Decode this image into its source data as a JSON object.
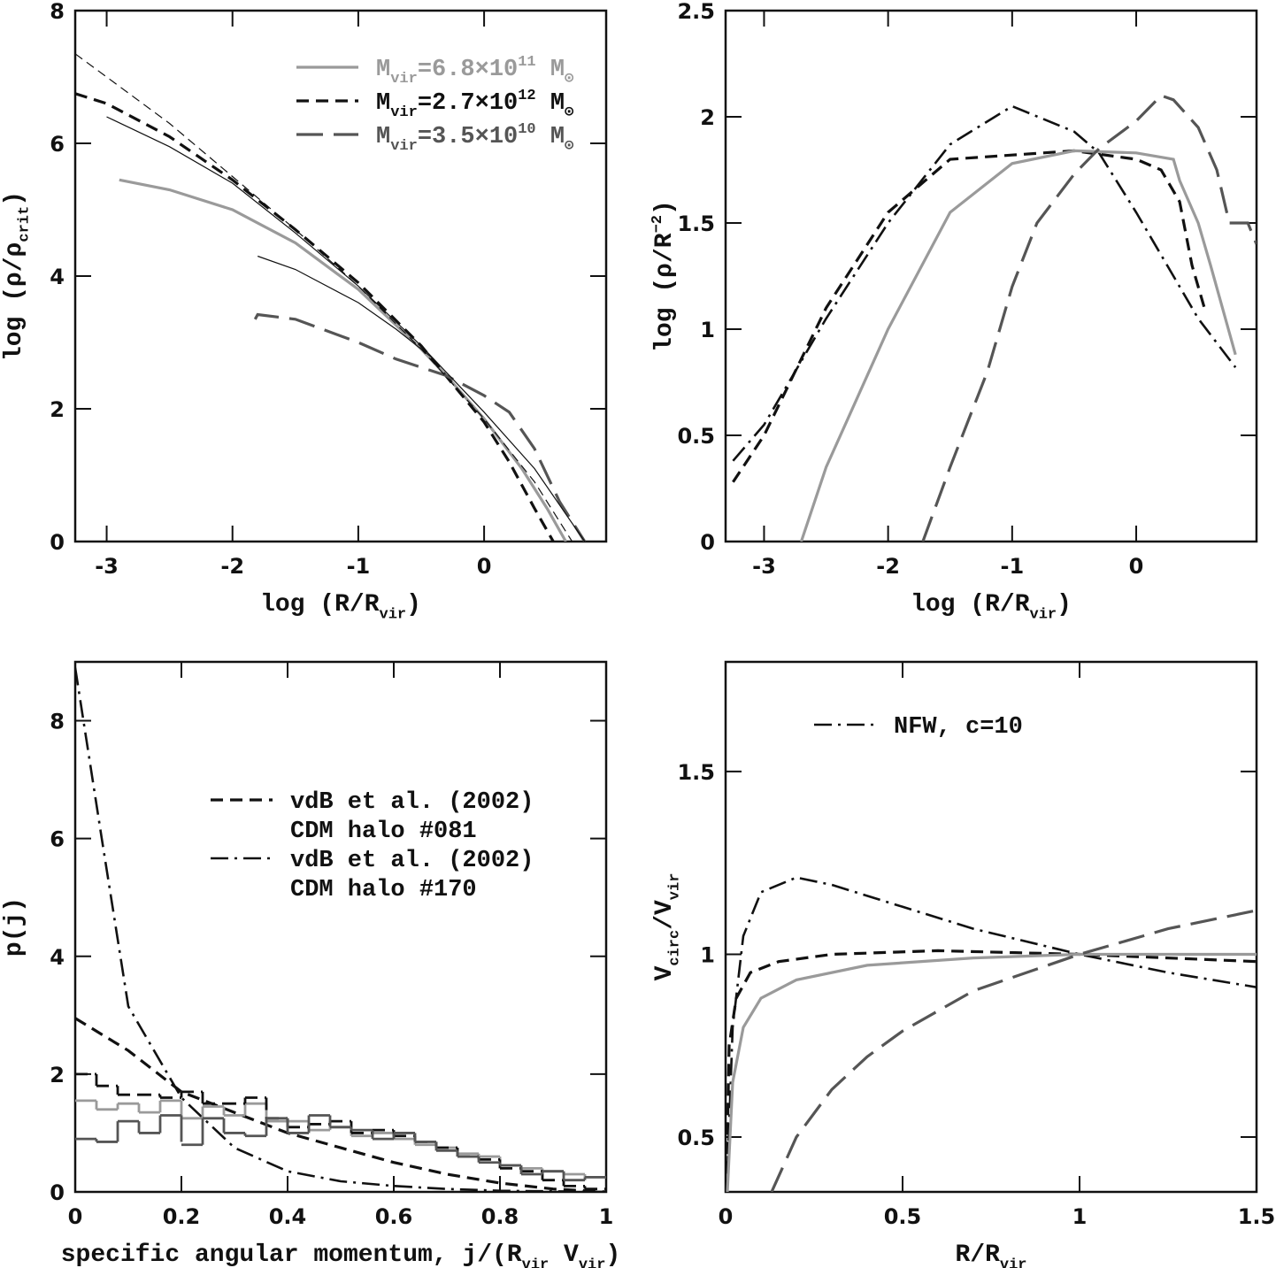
{
  "chart_data": [
    {
      "type": "line",
      "xlabel": [
        {
          "text": "log (R/R"
        },
        {
          "text": "vir",
          "shift": "sub"
        },
        {
          "text": ")"
        }
      ],
      "ylabel": [
        {
          "text": "log (ρ/ρ"
        },
        {
          "text": "crit",
          "shift": "sub"
        },
        {
          "text": ")"
        }
      ],
      "xlim": [
        -3.25,
        0.97
      ],
      "ylim": [
        0,
        8
      ],
      "xticks": [
        -3,
        -2,
        -1,
        0
      ],
      "yticks": [
        0,
        2,
        4,
        6,
        8
      ],
      "legend": "upper right",
      "series": [
        {
          "name": [
            [
              {
                "text": "M"
              },
              {
                "text": "vir",
                "shift": "sub"
              },
              {
                "text": "=6.8×10"
              },
              {
                "text": "11",
                "shift": "sup"
              },
              {
                "text": " M"
              },
              {
                "text": "⊙",
                "shift": "sub"
              }
            ]
          ],
          "color": "#9a9a9a",
          "linestyle": "solid",
          "x": [
            -2.9,
            -2.5,
            -2,
            -1.5,
            -1,
            -0.5,
            -0.3,
            0,
            0.3,
            0.5,
            0.65
          ],
          "values": [
            5.45,
            5.3,
            5.0,
            4.5,
            3.8,
            2.9,
            2.5,
            1.85,
            1.1,
            0.5,
            0
          ]
        },
        {
          "name": [
            [
              {
                "text": "M"
              },
              {
                "text": "vir",
                "shift": "sub"
              },
              {
                "text": "=2.7×10"
              },
              {
                "text": "12",
                "shift": "sup"
              },
              {
                "text": " M"
              },
              {
                "text": "⊙",
                "shift": "sub"
              }
            ]
          ],
          "color": "#111111",
          "linestyle": "dashed",
          "x": [
            -3.25,
            -3,
            -2.5,
            -2,
            -1.5,
            -1,
            -0.5,
            0,
            0.2,
            0.4,
            0.55
          ],
          "values": [
            6.75,
            6.6,
            6.1,
            5.45,
            4.7,
            3.9,
            2.95,
            1.8,
            1.2,
            0.5,
            0
          ]
        },
        {
          "name": [
            [
              {
                "text": "M"
              },
              {
                "text": "vir",
                "shift": "sub"
              },
              {
                "text": "=3.5×10"
              },
              {
                "text": "10",
                "shift": "sup"
              },
              {
                "text": " M"
              },
              {
                "text": "⊙",
                "shift": "sub"
              }
            ]
          ],
          "color": "#555555",
          "linestyle": "longdash",
          "x": [
            -1.82,
            -1.8,
            -1.5,
            -1,
            -0.7,
            -0.3,
            0,
            0.2,
            0.4,
            0.6,
            0.8
          ],
          "values": [
            3.35,
            3.42,
            3.35,
            3.0,
            2.75,
            2.5,
            2.2,
            1.95,
            1.4,
            0.6,
            0
          ]
        },
        {
          "color": "#111111",
          "linestyle": "thin-dashed",
          "x": [
            -3.25,
            -3,
            -2.5,
            -2,
            -1.5,
            -1,
            -0.5,
            0,
            0.4,
            0.7
          ],
          "values": [
            7.35,
            7.0,
            6.3,
            5.5,
            4.7,
            3.85,
            2.9,
            1.85,
            0.9,
            0
          ]
        },
        {
          "color": "#111111",
          "linestyle": "thin-solid",
          "x": [
            -3,
            -2.5,
            -2,
            -1.5,
            -1,
            -0.5,
            0,
            0.4,
            0.8
          ],
          "values": [
            6.4,
            5.95,
            5.4,
            4.65,
            3.85,
            2.95,
            1.95,
            1.1,
            0
          ]
        },
        {
          "color": "#111111",
          "linestyle": "thin-solid",
          "x": [
            -1.8,
            -1.5,
            -1,
            -0.7,
            -0.4
          ],
          "values": [
            4.3,
            4.1,
            3.6,
            3.2,
            2.75
          ]
        }
      ]
    },
    {
      "type": "line",
      "xlabel": [
        {
          "text": "log (R/R"
        },
        {
          "text": "vir",
          "shift": "sub"
        },
        {
          "text": ")"
        }
      ],
      "ylabel": [
        {
          "text": "log (ρ/R"
        },
        {
          "text": "−2",
          "shift": "sup"
        },
        {
          "text": ")"
        }
      ],
      "xlim": [
        -3.31,
        0.97
      ],
      "ylim": [
        0,
        2.5
      ],
      "xticks": [
        -3,
        -2,
        -1,
        0
      ],
      "yticks": [
        0,
        0.5,
        1,
        1.5,
        2,
        2.5
      ],
      "series": [
        {
          "color": "#111111",
          "linestyle": "dashdot",
          "x": [
            -3.25,
            -3,
            -2.5,
            -2,
            -1.5,
            -1,
            -0.5,
            -0.3,
            0,
            0.3,
            0.5,
            0.8
          ],
          "values": [
            0.38,
            0.55,
            1.05,
            1.5,
            1.87,
            2.05,
            1.93,
            1.83,
            1.55,
            1.25,
            1.05,
            0.82
          ]
        },
        {
          "color": "#111111",
          "linestyle": "dashed",
          "x": [
            -3.25,
            -3,
            -2.5,
            -2,
            -1.5,
            -1,
            -0.5,
            0,
            0.2,
            0.35,
            0.45,
            0.55
          ],
          "values": [
            0.28,
            0.5,
            1.1,
            1.55,
            1.8,
            1.82,
            1.84,
            1.8,
            1.75,
            1.6,
            1.3,
            1.1
          ]
        },
        {
          "color": "#9a9a9a",
          "linestyle": "solid",
          "x": [
            -2.7,
            -2.5,
            -2,
            -1.5,
            -1,
            -0.5,
            0,
            0.3,
            0.35,
            0.5,
            0.6,
            0.8
          ],
          "values": [
            0,
            0.35,
            1.0,
            1.55,
            1.78,
            1.84,
            1.83,
            1.8,
            1.7,
            1.5,
            1.3,
            0.88
          ]
        },
        {
          "color": "#555555",
          "linestyle": "longdash",
          "x": [
            -1.72,
            -1.5,
            -1.2,
            -1,
            -0.8,
            -0.5,
            -0.3,
            0,
            0.2,
            0.3,
            0.5,
            0.65,
            0.75,
            0.9,
            0.97
          ],
          "values": [
            0,
            0.35,
            0.8,
            1.2,
            1.5,
            1.73,
            1.85,
            1.98,
            2.1,
            2.08,
            1.95,
            1.75,
            1.5,
            1.5,
            1.4
          ]
        }
      ]
    },
    {
      "type": "line",
      "xlabel": [
        {
          "text": "specific angular momentum, j/(R"
        },
        {
          "text": "vir",
          "shift": "sub"
        },
        {
          "text": " V"
        },
        {
          "text": "vir",
          "shift": "sub"
        },
        {
          "text": ")"
        }
      ],
      "ylabel": [
        {
          "text": "p(j)"
        }
      ],
      "xlim": [
        0,
        1
      ],
      "ylim": [
        0,
        9
      ],
      "xticks": [
        0,
        0.2,
        0.4,
        0.6,
        0.8,
        1
      ],
      "yticks": [
        0,
        2,
        4,
        6,
        8
      ],
      "legend": "center right",
      "series": [
        {
          "name": [
            [
              {
                "text": "vdB et al. (2002)"
              }
            ],
            [
              {
                "text": "CDM halo #081"
              }
            ]
          ],
          "color": "#111111",
          "linestyle": "dashed",
          "x": [
            0,
            0.1,
            0.2,
            0.3,
            0.4,
            0.5,
            0.6,
            0.7,
            0.8,
            0.9,
            1
          ],
          "values": [
            2.95,
            2.4,
            1.7,
            1.35,
            1.0,
            0.75,
            0.5,
            0.3,
            0.15,
            0.05,
            0
          ]
        },
        {
          "name": [
            [
              {
                "text": "vdB et al. (2002)"
              }
            ],
            [
              {
                "text": "CDM halo #170"
              }
            ]
          ],
          "color": "#111111",
          "linestyle": "dashdot",
          "x": [
            0,
            0.05,
            0.1,
            0.2,
            0.3,
            0.4,
            0.5,
            0.6,
            0.7,
            0.8,
            1
          ],
          "values": [
            8.9,
            6.0,
            3.15,
            1.6,
            0.75,
            0.35,
            0.18,
            0.1,
            0.05,
            0.02,
            0
          ]
        },
        {
          "type": "step",
          "color": "#9a9a9a",
          "linestyle": "solid",
          "bins": [
            0,
            0.04,
            0.08,
            0.12,
            0.16,
            0.2,
            0.24,
            0.28,
            0.32,
            0.36,
            0.4,
            0.44,
            0.48,
            0.52,
            0.56,
            0.6,
            0.64,
            0.68,
            0.72,
            0.76,
            0.8,
            0.84,
            0.88,
            0.92,
            0.96,
            1
          ],
          "values": [
            1.55,
            1.4,
            1.5,
            1.35,
            1.55,
            1.25,
            1.45,
            1.3,
            1.5,
            1.2,
            1.2,
            1.05,
            1.1,
            0.95,
            1.0,
            0.9,
            0.8,
            0.75,
            0.65,
            0.6,
            0.45,
            0.4,
            0.35,
            0.3,
            0.25
          ]
        },
        {
          "type": "step",
          "color": "#111111",
          "linestyle": "dashed",
          "bins": [
            0,
            0.04,
            0.08,
            0.12,
            0.16,
            0.2,
            0.24,
            0.28,
            0.32,
            0.36,
            0.4,
            0.44,
            0.48,
            0.52,
            0.56,
            0.6,
            0.64,
            0.68,
            0.72,
            0.76,
            0.8,
            0.84,
            0.88,
            0.92,
            0.96,
            1
          ],
          "values": [
            2.0,
            1.8,
            1.65,
            1.65,
            1.6,
            1.7,
            1.5,
            1.5,
            1.6,
            1.25,
            1.1,
            1.15,
            1.2,
            1.0,
            1.05,
            0.95,
            0.85,
            0.75,
            0.6,
            0.55,
            0.4,
            0.35,
            0.2,
            0.1,
            0.05
          ]
        },
        {
          "type": "step",
          "color": "#555555",
          "linestyle": "longdash",
          "bins": [
            0,
            0.04,
            0.08,
            0.12,
            0.16,
            0.2,
            0.24,
            0.28,
            0.32,
            0.36,
            0.4,
            0.44,
            0.48,
            0.52,
            0.56,
            0.6,
            0.64,
            0.68,
            0.72,
            0.76,
            0.8,
            0.84,
            0.88,
            0.92,
            0.96,
            1
          ],
          "values": [
            0.9,
            0.85,
            1.2,
            1.0,
            1.3,
            0.8,
            1.25,
            1.0,
            0.95,
            1.25,
            1.0,
            1.3,
            1.1,
            1.05,
            0.9,
            1.0,
            0.85,
            0.7,
            0.6,
            0.5,
            0.45,
            0.3,
            0.35,
            0.2,
            0.25
          ]
        }
      ]
    },
    {
      "type": "line",
      "xlabel": [
        {
          "text": "R/R"
        },
        {
          "text": "vir",
          "shift": "sub"
        }
      ],
      "ylabel": [
        {
          "text": "V"
        },
        {
          "text": "circ",
          "shift": "sub"
        },
        {
          "text": "/V"
        },
        {
          "text": "vir",
          "shift": "sub"
        }
      ],
      "xlim": [
        0,
        1.5
      ],
      "ylim": [
        0.35,
        1.8
      ],
      "xticks": [
        0,
        0.5,
        1,
        1.5
      ],
      "yticks": [
        0.5,
        1,
        1.5
      ],
      "legend": "upper center",
      "series": [
        {
          "name": [
            [
              {
                "text": "NFW, c=10"
              }
            ]
          ],
          "color": "#111111",
          "linestyle": "dashdot",
          "x": [
            0.005,
            0.02,
            0.05,
            0.1,
            0.2,
            0.3,
            0.5,
            0.7,
            1.0,
            1.25,
            1.5
          ],
          "values": [
            0.4,
            0.8,
            1.05,
            1.17,
            1.21,
            1.19,
            1.13,
            1.07,
            1.0,
            0.95,
            0.91
          ]
        },
        {
          "color": "#111111",
          "linestyle": "dashed",
          "x": [
            0.003,
            0.01,
            0.03,
            0.07,
            0.15,
            0.3,
            0.6,
            1.0,
            1.5
          ],
          "values": [
            0.4,
            0.75,
            0.88,
            0.95,
            0.98,
            1.0,
            1.01,
            1.0,
            0.98
          ]
        },
        {
          "color": "#9a9a9a",
          "linestyle": "solid",
          "x": [
            0.005,
            0.02,
            0.05,
            0.1,
            0.2,
            0.4,
            0.7,
            1.0,
            1.5
          ],
          "values": [
            0.35,
            0.65,
            0.8,
            0.88,
            0.93,
            0.97,
            0.99,
            1.0,
            1.0
          ]
        },
        {
          "color": "#555555",
          "linestyle": "longdash",
          "x": [
            0.13,
            0.2,
            0.3,
            0.4,
            0.5,
            0.7,
            1.0,
            1.25,
            1.5
          ],
          "values": [
            0.35,
            0.5,
            0.63,
            0.72,
            0.79,
            0.9,
            1.0,
            1.07,
            1.12
          ]
        }
      ]
    }
  ]
}
